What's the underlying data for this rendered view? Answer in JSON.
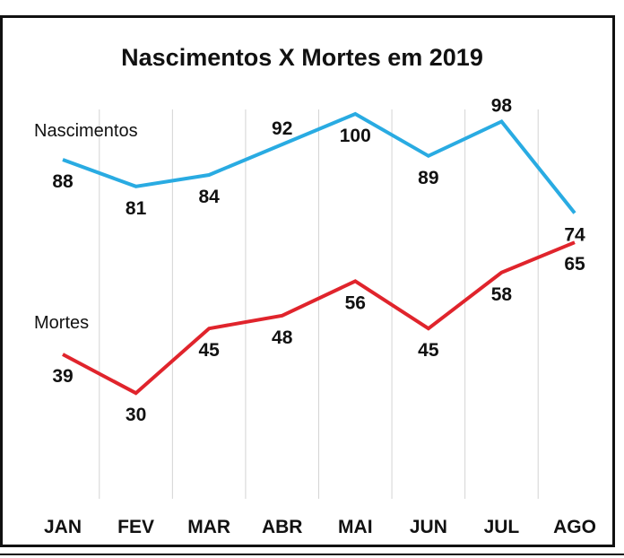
{
  "chart_data": {
    "type": "line",
    "title": "Nascimentos X Mortes em 2019",
    "categories": [
      "JAN",
      "FEV",
      "MAR",
      "ABR",
      "MAI",
      "JUN",
      "JUL",
      "AGO"
    ],
    "series": [
      {
        "name": "Nascimentos",
        "color": "#29abe2",
        "values": [
          88,
          81,
          84,
          92,
          100,
          89,
          98,
          74
        ]
      },
      {
        "name": "Mortes",
        "color": "#e0242c",
        "values": [
          39,
          30,
          45,
          48,
          56,
          45,
          58,
          65
        ]
      }
    ],
    "grid": "vertical"
  }
}
